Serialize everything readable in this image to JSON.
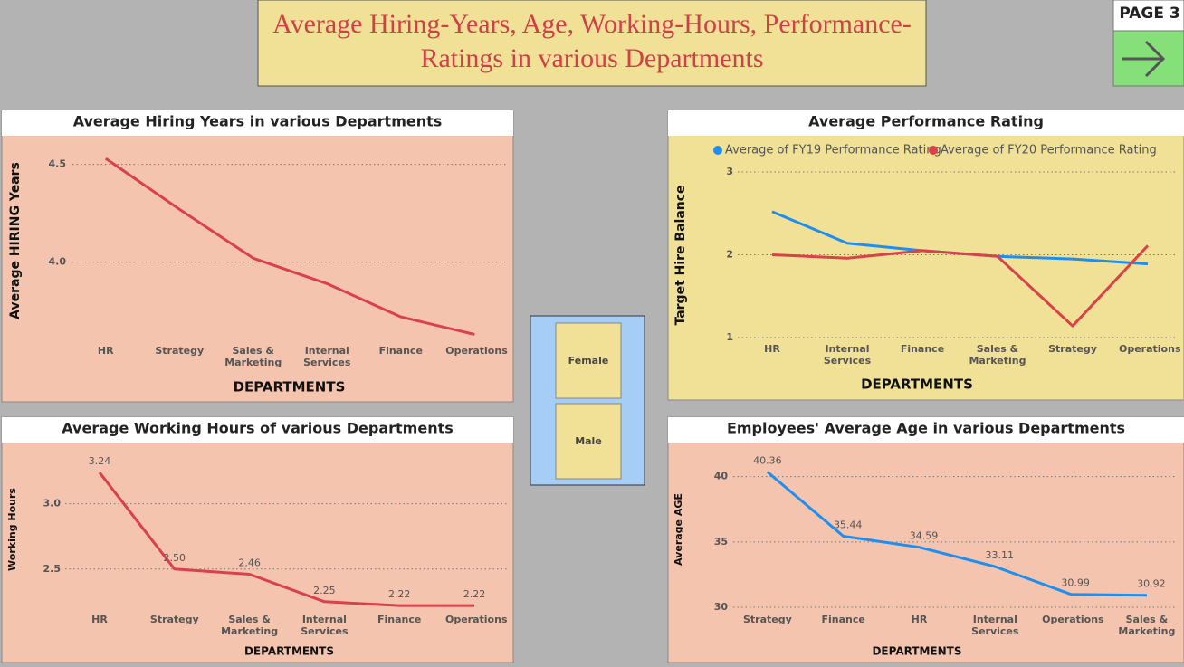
{
  "header": {
    "title": "Average Hiring-Years, Age, Working-Hours, Performance-Ratings in various Departments"
  },
  "page_nav": {
    "label": "PAGE 3"
  },
  "slicer": {
    "items": [
      "Female",
      "Male"
    ]
  },
  "chart_data": [
    {
      "type": "line",
      "title": "Average Hiring Years in various Departments",
      "x_label": "DEPARTMENTS",
      "y_label": "Average HIRING Years",
      "categories": [
        "HR",
        "Strategy",
        "Sales & Marketing",
        "Internal Services",
        "Finance",
        "Operations"
      ],
      "values": [
        4.53,
        4.27,
        4.02,
        3.89,
        3.72,
        3.63
      ],
      "color": "#d9424a",
      "ylim": [
        3.6,
        4.6
      ],
      "yticks": [
        {
          "value": 4,
          "label": "4.0"
        },
        {
          "value": 4.5,
          "label": "4.5"
        }
      ],
      "grid": true
    },
    {
      "type": "line",
      "title": "Average Performance Rating",
      "x_label": "DEPARTMENTS",
      "y_label": "Target Hire Balance",
      "categories": [
        "HR",
        "Internal Services",
        "Finance",
        "Sales & Marketing",
        "Strategy",
        "Operations"
      ],
      "series": [
        {
          "name": "Average of FY19 Performance Rating",
          "color": "#1e8ff0",
          "values": [
            2.52,
            2.14,
            2.05,
            1.98,
            1.95,
            1.89
          ]
        },
        {
          "name": "Average of FY20 Performance Rating",
          "color": "#d9424a",
          "values": [
            2.0,
            1.96,
            2.05,
            1.98,
            1.14,
            2.11
          ]
        }
      ],
      "ylim": [
        1,
        3
      ],
      "yticks": [
        1,
        2,
        3
      ],
      "grid": true,
      "legend": "top"
    },
    {
      "type": "line",
      "title": "Average Working Hours of various Departments",
      "x_label": "DEPARTMENTS",
      "y_label": "Working Hours",
      "categories": [
        "HR",
        "Strategy",
        "Sales & Marketing",
        "Internal Services",
        "Finance",
        "Operations"
      ],
      "values": [
        3.24,
        2.5,
        2.46,
        2.25,
        2.22,
        2.22
      ],
      "value_labels": [
        "3.24",
        "2.50",
        "2.46",
        "2.25",
        "2.22",
        "2.22"
      ],
      "color": "#d9424a",
      "ylim": [
        2.2,
        3.4
      ],
      "yticks": [
        {
          "value": 2.5,
          "label": "2.5"
        },
        {
          "value": 3,
          "label": "3.0"
        }
      ],
      "grid": true
    },
    {
      "type": "line",
      "title": "Employees' Average Age in various Departments",
      "x_label": "DEPARTMENTS",
      "y_label": "Average AGE",
      "categories": [
        "Strategy",
        "Finance",
        "HR",
        "Internal Services",
        "Operations",
        "Sales & Marketing"
      ],
      "values": [
        40.36,
        35.44,
        34.59,
        33.11,
        30.99,
        30.92
      ],
      "color": "#1e8ff0",
      "ylim": [
        30,
        41.5
      ],
      "yticks": [
        30,
        35,
        40
      ],
      "grid": true
    }
  ]
}
